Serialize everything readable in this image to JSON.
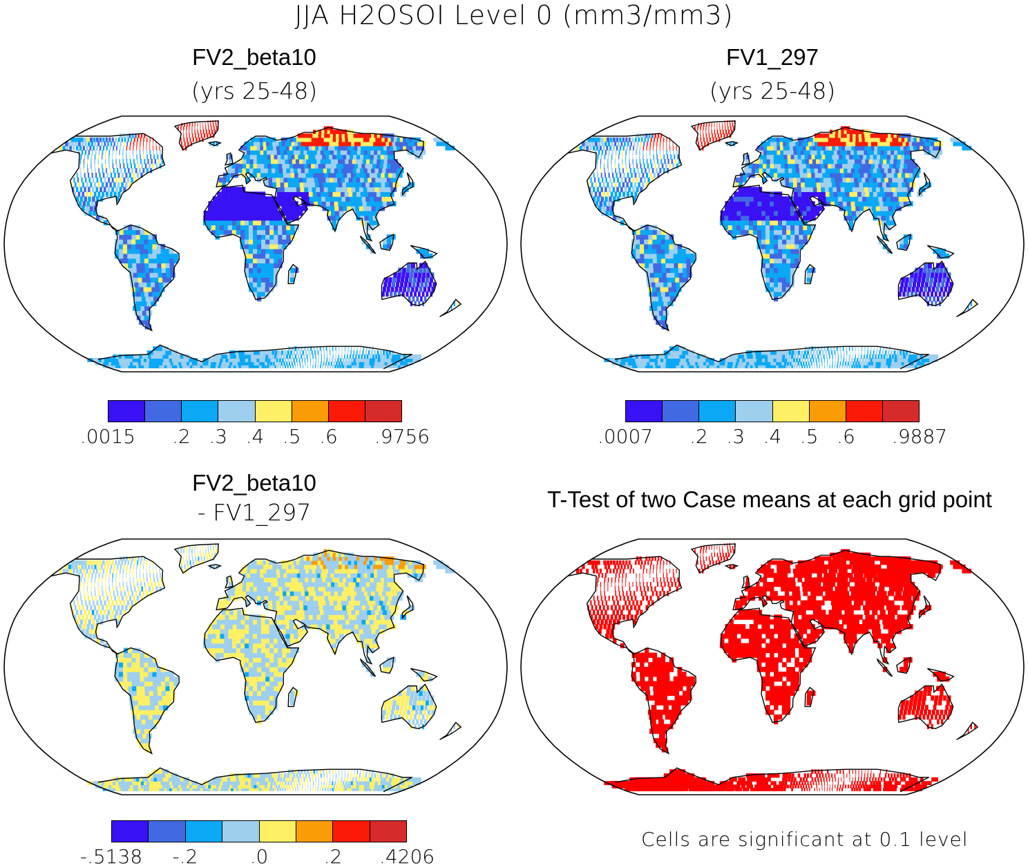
{
  "title": "JJA H2OSOI Level 0 (mm3/mm3)",
  "panels": {
    "top_left": {
      "title": "FV2_beta10",
      "subtitle": "(yrs 25-48)"
    },
    "top_right": {
      "title": "FV1_297",
      "subtitle": "(yrs 25-48)"
    },
    "bottom_left": {
      "title": "FV2_beta10",
      "subtitle": "- FV1_297"
    },
    "bottom_right": {
      "title": "T-Test of two Case means at each grid point"
    }
  },
  "colorbars": {
    "top_left": {
      "colors": [
        "#3a10f5",
        "#4169e1",
        "#0aa8f5",
        "#9ecfee",
        "#fef064",
        "#fa9c06",
        "#fb1a07",
        "#d72a2b"
      ],
      "labels": [
        ".0015",
        ".2",
        ".3",
        ".4",
        ".5",
        ".6",
        ".9756"
      ]
    },
    "top_right": {
      "colors": [
        "#3a10f5",
        "#4169e1",
        "#0aa8f5",
        "#9ecfee",
        "#fef064",
        "#fa9c06",
        "#fb1a07",
        "#d72a2b"
      ],
      "labels": [
        ".0007",
        ".2",
        ".3",
        ".4",
        ".5",
        ".6",
        ".9887"
      ]
    },
    "bottom_left": {
      "colors": [
        "#3a10f5",
        "#4169e1",
        "#0aa8f5",
        "#9ecfee",
        "#fef064",
        "#fa9c06",
        "#fb1a07",
        "#d72a2b"
      ],
      "labels": [
        "-.5138",
        "-.2",
        ".0",
        ".2",
        ".4206"
      ]
    }
  },
  "significance": {
    "color": "#ff0000"
  },
  "footnote": "Cells are significant at 0.1 level"
}
